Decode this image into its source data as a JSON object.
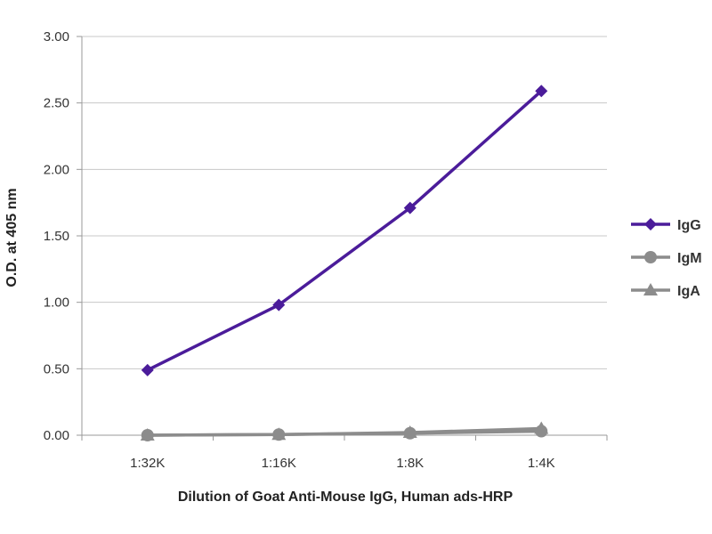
{
  "chart_data": {
    "type": "line",
    "categories": [
      "1:32K",
      "1:16K",
      "1:8K",
      "1:4K"
    ],
    "series": [
      {
        "name": "IgG",
        "values": [
          0.49,
          0.98,
          1.71,
          2.59
        ],
        "color": "#4B1C9A",
        "marker": "diamond"
      },
      {
        "name": "IgM",
        "values": [
          0.0,
          0.005,
          0.015,
          0.03
        ],
        "color": "#8C8C8C",
        "marker": "circle"
      },
      {
        "name": "IgA",
        "values": [
          0.0,
          0.005,
          0.02,
          0.05
        ],
        "color": "#8C8C8C",
        "marker": "triangle"
      }
    ],
    "ylim": [
      0,
      3.0
    ],
    "yticks": [
      "0.00",
      "0.50",
      "1.00",
      "1.50",
      "2.00",
      "2.50",
      "3.00"
    ],
    "ylabel": "O.D. at 405 nm",
    "xlabel": "Dilution of Goat Anti-Mouse IgG, Human ads-HRP",
    "title": "",
    "grid": true,
    "legend_position": "right"
  }
}
